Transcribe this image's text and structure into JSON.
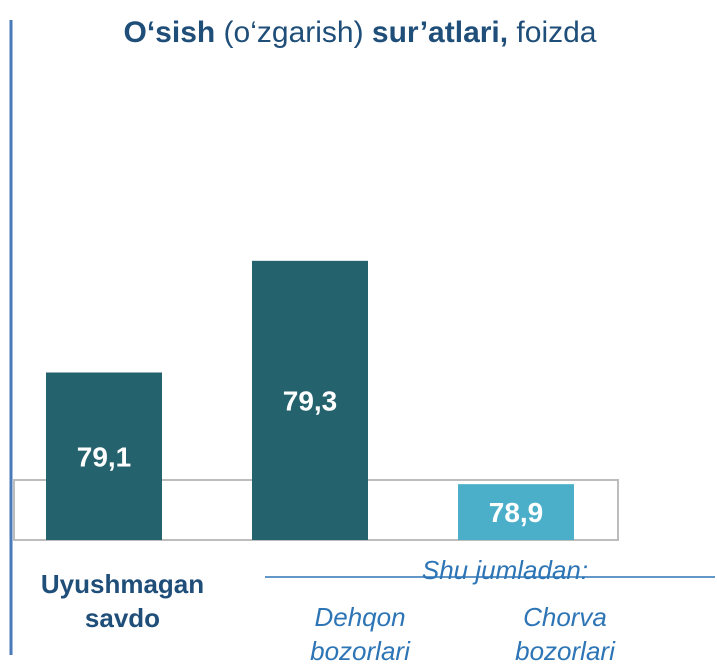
{
  "chart_data": {
    "type": "bar",
    "title_parts": [
      {
        "text": "O‘sish",
        "bold": true
      },
      {
        "text": " (o‘zgarish) ",
        "bold": false
      },
      {
        "text": "sur’atlari,",
        "bold": true
      },
      {
        "text": " foizda",
        "bold": false
      }
    ],
    "categories": [
      "Uyushmagan savdo",
      "Dehqon bozorlari",
      "Chorva bozorlari"
    ],
    "values": [
      79.1,
      79.3,
      78.9
    ],
    "value_labels": [
      "79,1",
      "79,3",
      "78,9"
    ],
    "colors": [
      "#24626d",
      "#24626d",
      "#4bafca"
    ],
    "annotation": "Shu jumladan:",
    "ylim": [
      78.8,
      79.4
    ]
  }
}
